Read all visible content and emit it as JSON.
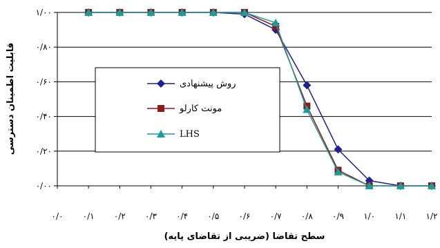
{
  "chart_data": {
    "type": "line",
    "title": "",
    "xlabel": "سطح تقاضا (ضریبی از تقاضای پایه)",
    "ylabel": "قابلیت اطمینان دسترسی",
    "x_tick_labels": [
      "۰/۰",
      "۰/۱",
      "۰/۲",
      "۰/۳",
      "۰/۴",
      "۰/۵",
      "۰/۶",
      "۰/۷",
      "۰/۸",
      "۰/۹",
      "۱/۰",
      "۱/۱",
      "۱/۲"
    ],
    "y_tick_labels": [
      "۰/۰۰",
      "۰/۲۰",
      "۰/۴۰",
      "۰/۶۰",
      "۰/۸۰",
      "۱/۰۰"
    ],
    "x": [
      0.1,
      0.2,
      0.3,
      0.4,
      0.5,
      0.6,
      0.7,
      0.8,
      0.9,
      1.0,
      1.1,
      1.2
    ],
    "xlim": [
      0.0,
      1.2
    ],
    "ylim": [
      0.0,
      1.0
    ],
    "y_ticks": [
      0.0,
      0.2,
      0.4,
      0.6,
      0.8,
      1.0
    ],
    "grid": "horizontal",
    "legend_position": "center-left",
    "series": [
      {
        "name": "روش پیشنهادی",
        "marker": "diamond",
        "color": "#1f1f8f",
        "values": [
          1.0,
          1.0,
          1.0,
          1.0,
          1.0,
          0.99,
          0.9,
          0.58,
          0.21,
          0.03,
          0.0,
          0.0
        ]
      },
      {
        "name": "مونت کارلو",
        "marker": "square",
        "color": "#8b1a1a",
        "values": [
          1.0,
          1.0,
          1.0,
          1.0,
          1.0,
          1.0,
          0.92,
          0.46,
          0.09,
          0.0,
          0.0,
          0.0
        ]
      },
      {
        "name": "LHS",
        "marker": "triangle",
        "color": "#1a9c9c",
        "values": [
          1.0,
          1.0,
          1.0,
          1.0,
          1.0,
          1.0,
          0.94,
          0.44,
          0.08,
          0.0,
          0.0,
          0.0
        ]
      }
    ]
  }
}
